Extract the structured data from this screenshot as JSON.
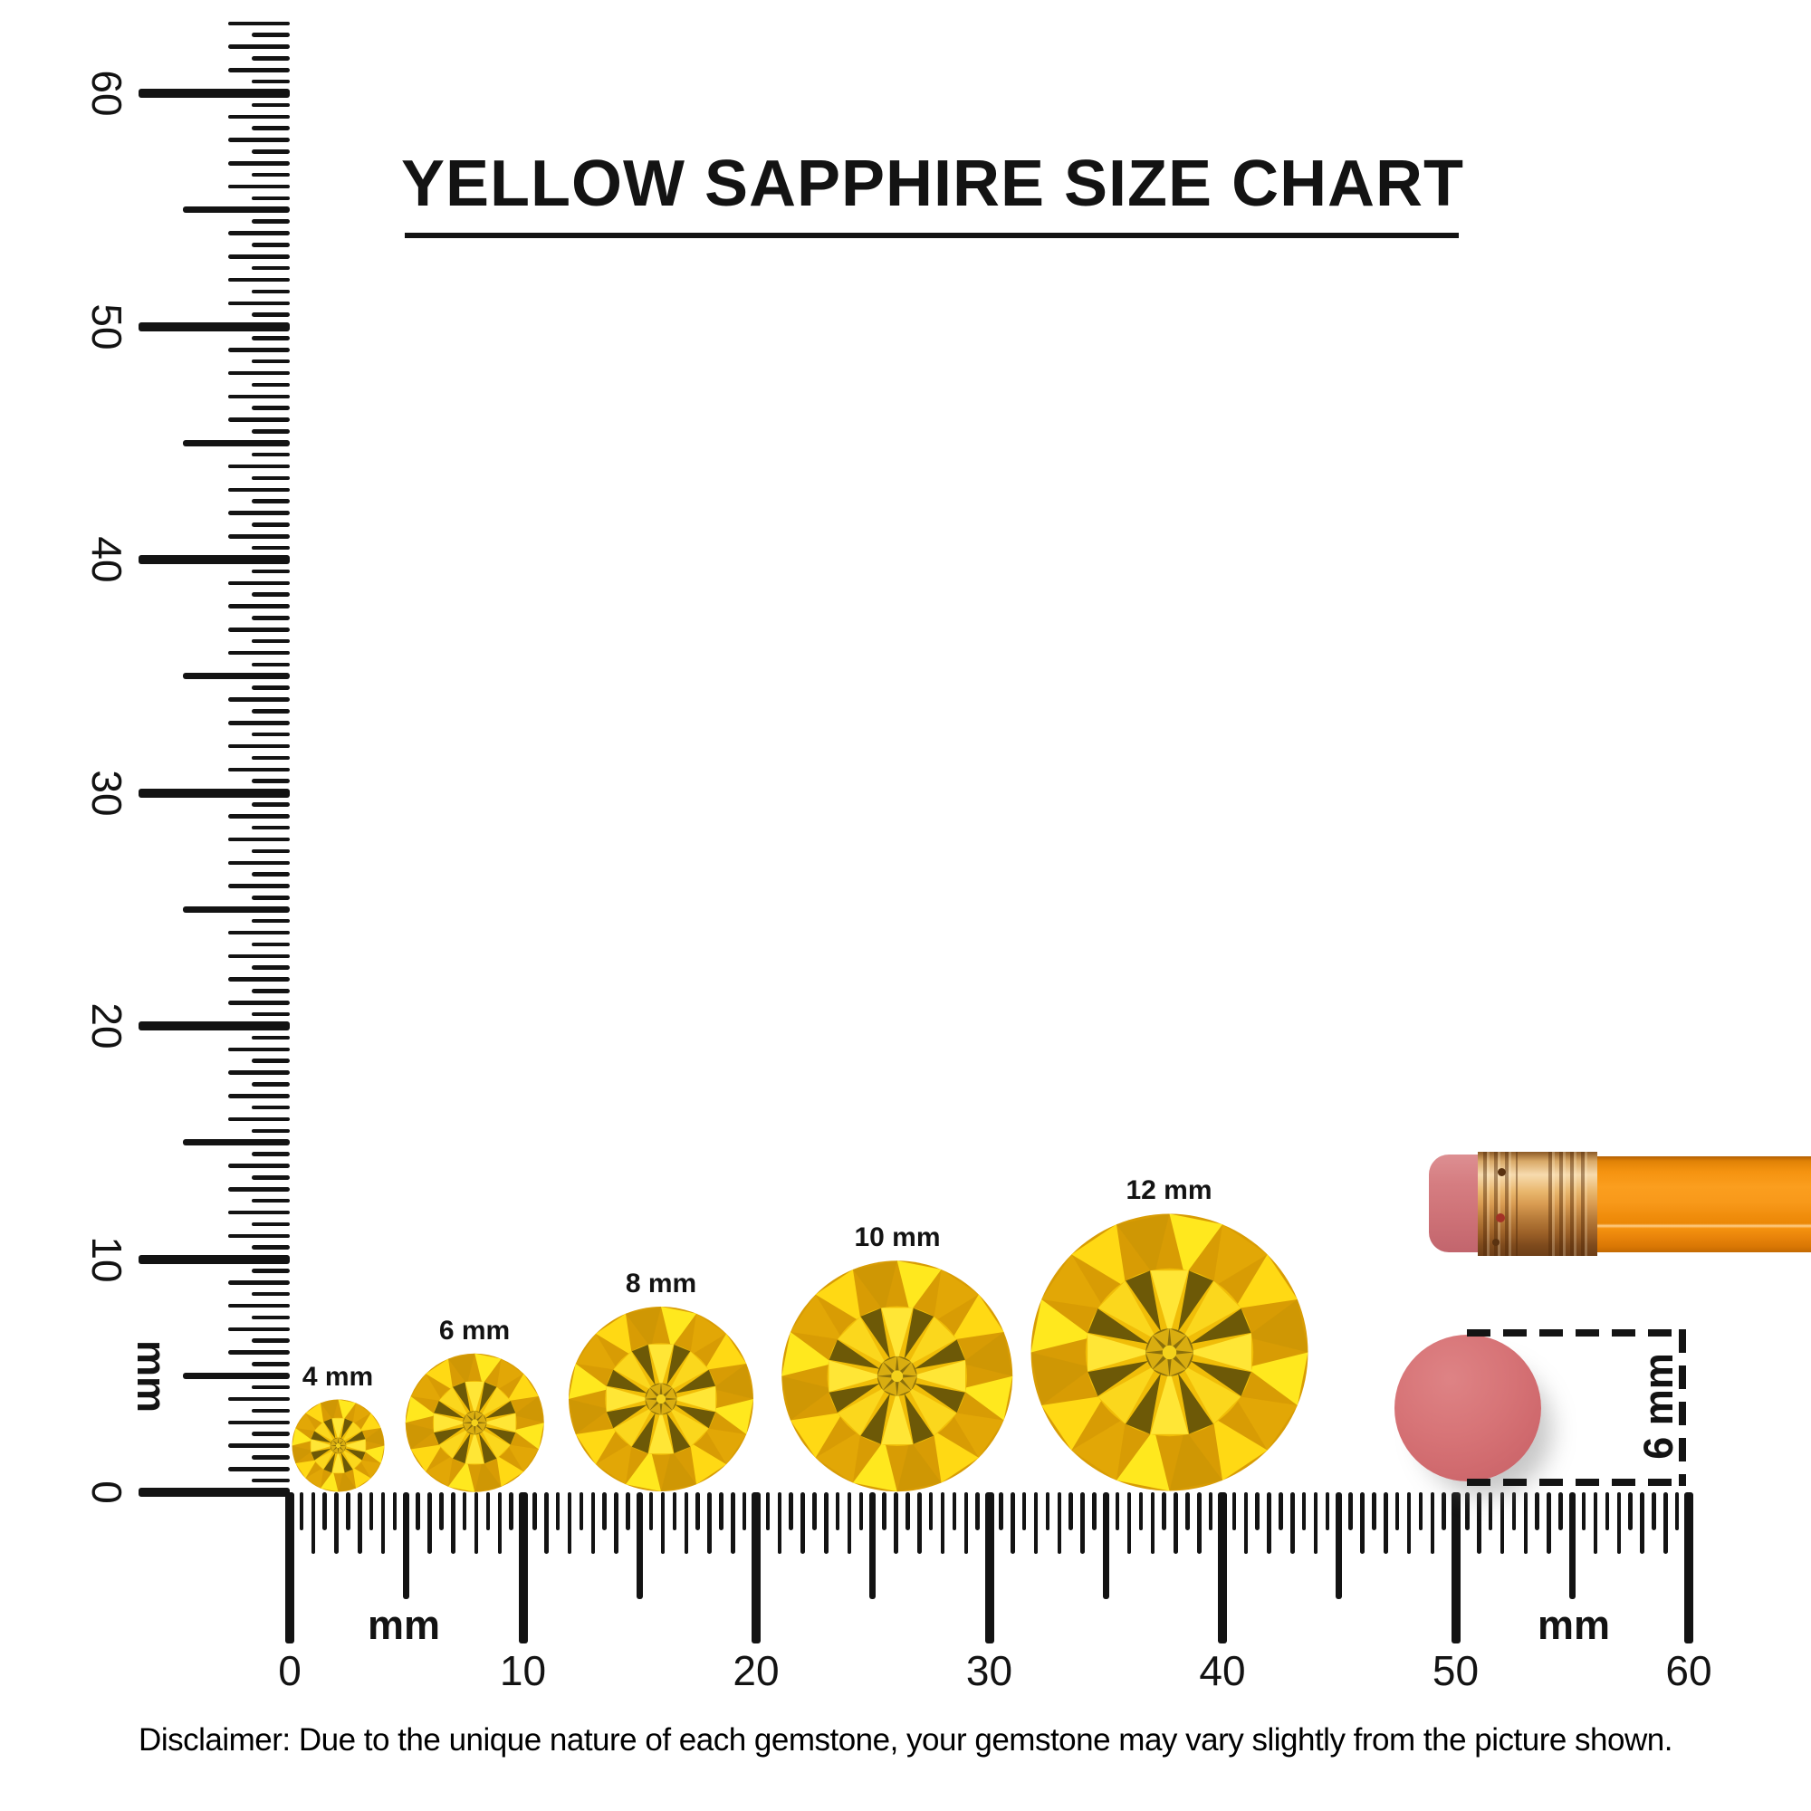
{
  "title": {
    "text": "YELLOW SAPPHIRE SIZE CHART"
  },
  "disclaimer": {
    "text": "Disclaimer: Due to the unique nature of each gemstone, your gemstone may vary slightly from the picture shown."
  },
  "rulers": {
    "unit_label": "mm",
    "vertical": {
      "min_mm": 0,
      "max_mm": 60,
      "major_step_mm": 10,
      "labels": [
        "0",
        "10",
        "20",
        "30",
        "40",
        "50",
        "60"
      ]
    },
    "horizontal": {
      "min_mm": 0,
      "max_mm": 60,
      "major_step_mm": 10,
      "labels": [
        "0",
        "10",
        "20",
        "30",
        "40",
        "50",
        "60"
      ],
      "unit_label_left": "mm",
      "unit_label_right": "mm"
    }
  },
  "gems": [
    {
      "label": "4 mm",
      "size_mm": 4
    },
    {
      "label": "6 mm",
      "size_mm": 6
    },
    {
      "label": "8 mm",
      "size_mm": 8
    },
    {
      "label": "10 mm",
      "size_mm": 10
    },
    {
      "label": "12 mm",
      "size_mm": 12
    }
  ],
  "eraser_comparison": {
    "label": "6 mm",
    "diameter_mm": 6
  },
  "colors": {
    "ink": "#131313",
    "gem_bright": "#ffe81e",
    "gem_mid": "#e2a706",
    "gem_dark": "#6d5907",
    "eraser_pink": "#d57d81",
    "eraser_disc": "#d06a6e",
    "ferrule_copper": "#e9b76e",
    "pencil_orange": "#f8991a"
  }
}
